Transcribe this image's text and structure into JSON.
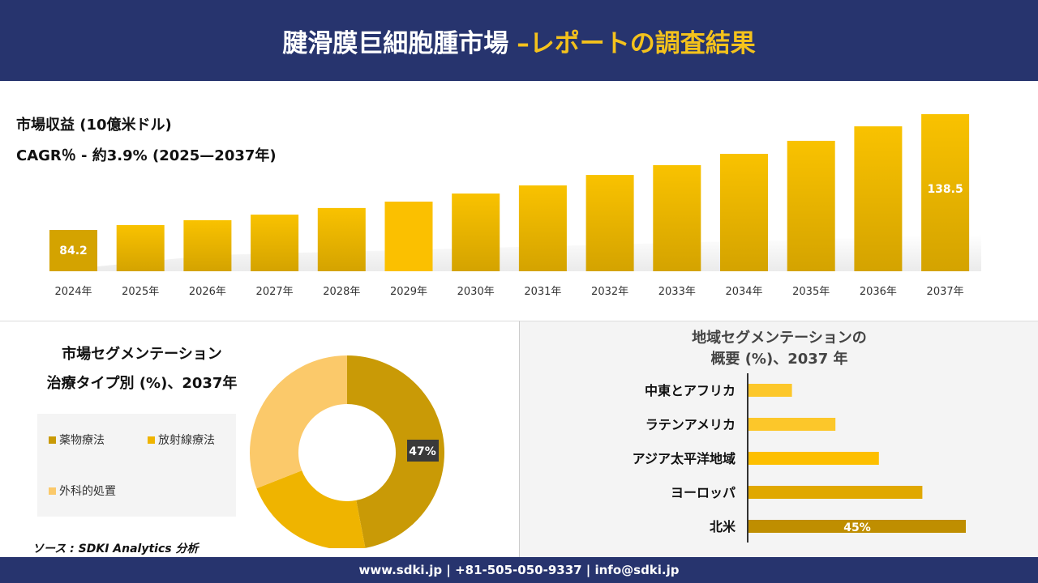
{
  "header": {
    "title_main": "腱滑膜巨細胞腫市場",
    "title_accent": "–レポートの調査結果"
  },
  "revenue": {
    "label": "市場収益 (10億米ドル)",
    "cagr": "CAGR％ - 約3.9% (2025—2037年)"
  },
  "chart_data": [
    {
      "type": "bar",
      "categories": [
        "2024年",
        "2025年",
        "2026年",
        "2027年",
        "2028年",
        "2029年",
        "2030年",
        "2031年",
        "2032年",
        "2033年",
        "2034年",
        "2035年",
        "2036年",
        "2037年"
      ],
      "values": [
        84.2,
        86.5,
        88.8,
        91.4,
        94.5,
        97.5,
        101.3,
        105.1,
        110.0,
        114.6,
        119.9,
        126.0,
        132.8,
        138.5
      ],
      "data_labels": {
        "0": "84.2",
        "13": "138.5"
      },
      "ylabel": "市場収益 (10億米ドル)",
      "colors": [
        "#d4a300",
        "#f5c000",
        "#f9c200"
      ]
    },
    {
      "type": "pie",
      "title": "市場セグメンテーション 治療タイプ別 (%)、2037年",
      "categories": [
        "薬物療法",
        "放射線療法",
        "外科的処置"
      ],
      "values": [
        47,
        22,
        31
      ],
      "data_labels": {
        "0": "47%"
      },
      "colors": [
        "#c99a06",
        "#efb400",
        "#fbc96a"
      ],
      "legend": "left"
    },
    {
      "type": "bar",
      "orientation": "horizontal",
      "title": "地域セグメンテーションの 概要 (%)、2037 年",
      "categories": [
        "中東とアフリカ",
        "ラテンアメリカ",
        "アジア太平洋地域",
        "ヨーロッパ",
        "北米"
      ],
      "values": [
        9,
        18,
        27,
        36,
        45
      ],
      "data_labels": {
        "4": "45%"
      },
      "colors": [
        "#fcc72a",
        "#fcc72a",
        "#fdbf00",
        "#e0a800",
        "#bf8e00"
      ]
    }
  ],
  "segment": {
    "title1": "市場セグメンテーション",
    "title2": "治療タイプ別 (%)、2037年"
  },
  "region": {
    "title1": "地域セグメンテーションの",
    "title2": "概要 (%)、2037 年"
  },
  "source": "ソース : SDKI Analytics 分析",
  "footer": "www.sdki.jp | +81-505-050-9337 | info@sdki.jp"
}
